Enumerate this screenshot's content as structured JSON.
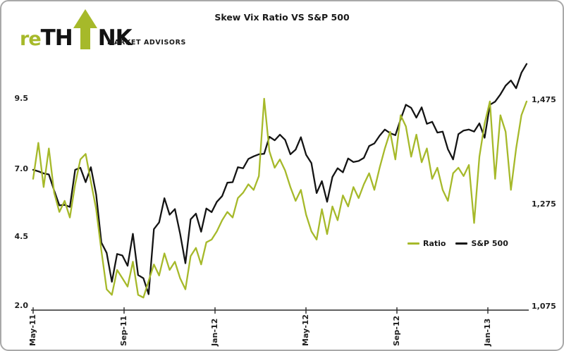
{
  "logo": {
    "prefix": "re",
    "mid": "TH",
    "suffix": "NK",
    "tagline": "MARKET ADVISORS",
    "green": "#a6b92a",
    "black": "#121212",
    "arrow_icon": "up-arrow"
  },
  "chart_data": {
    "type": "line",
    "title": "Skew Vix Ratio VS S&P 500",
    "legend_position": "inside-right",
    "grid": false,
    "x_axis": {
      "tick_labels": [
        "May-11",
        "Sep-11",
        "Jan-12",
        "May-12",
        "Sep-12",
        "Jan-13"
      ],
      "label_rotation_deg": 90
    },
    "left_axis": {
      "tick_labels": [
        "9.5",
        "7.0",
        "4.5",
        "2.0"
      ],
      "min": 2.0,
      "max": 9.5,
      "series": "Ratio"
    },
    "right_axis": {
      "tick_labels": [
        "1,475",
        "1,275",
        "1,075"
      ],
      "min": 1075,
      "max": 1475,
      "series": "S&P 500"
    },
    "legend": [
      {
        "label": "Ratio",
        "color": "#a6b92a"
      },
      {
        "label": "S&P 500",
        "color": "#141414"
      }
    ],
    "series": [
      {
        "name": "Ratio",
        "axis": "left",
        "color": "#a6b92a",
        "values": [
          6.6,
          7.9,
          6.3,
          7.7,
          6.1,
          5.4,
          5.8,
          5.2,
          6.4,
          7.3,
          7.5,
          6.5,
          5.5,
          4.0,
          2.6,
          2.4,
          3.3,
          3.0,
          2.7,
          3.6,
          2.4,
          2.3,
          2.9,
          3.5,
          3.1,
          3.9,
          3.3,
          3.6,
          3.0,
          2.6,
          3.8,
          4.1,
          3.5,
          4.3,
          4.4,
          4.7,
          5.1,
          5.4,
          5.2,
          5.9,
          6.1,
          6.4,
          6.2,
          6.7,
          9.5,
          7.6,
          7.0,
          7.3,
          6.9,
          6.3,
          5.8,
          6.2,
          5.3,
          4.7,
          4.4,
          5.5,
          4.6,
          5.6,
          5.1,
          6.0,
          5.6,
          6.3,
          5.9,
          6.4,
          6.8,
          6.2,
          7.0,
          7.7,
          8.3,
          7.3,
          8.9,
          8.5,
          7.4,
          8.2,
          7.2,
          7.7,
          6.6,
          7.0,
          6.2,
          5.8,
          6.8,
          7.0,
          6.7,
          7.1,
          5.0,
          7.4,
          8.6,
          9.4,
          6.6,
          8.9,
          8.3,
          6.2,
          7.7,
          8.9,
          9.4
        ]
      },
      {
        "name": "S&P 500",
        "axis": "right",
        "color": "#141414",
        "values": [
          1340,
          1337,
          1333,
          1331,
          1300,
          1271,
          1272,
          1268,
          1340,
          1344,
          1316,
          1345,
          1292,
          1199,
          1179,
          1123,
          1177,
          1174,
          1154,
          1216,
          1136,
          1130,
          1099,
          1225,
          1238,
          1285,
          1253,
          1264,
          1216,
          1159,
          1244,
          1255,
          1220,
          1265,
          1258,
          1278,
          1289,
          1315,
          1316,
          1345,
          1343,
          1361,
          1366,
          1370,
          1371,
          1404,
          1397,
          1408,
          1398,
          1370,
          1379,
          1403,
          1369,
          1353,
          1295,
          1318,
          1278,
          1326,
          1343,
          1335,
          1362,
          1355,
          1357,
          1363,
          1386,
          1391,
          1406,
          1418,
          1411,
          1407,
          1438,
          1466,
          1460,
          1441,
          1461,
          1429,
          1433,
          1412,
          1414,
          1380,
          1360,
          1409,
          1416,
          1418,
          1414,
          1430,
          1402,
          1466,
          1472,
          1486,
          1503,
          1513,
          1498,
          1528,
          1545
        ]
      }
    ]
  },
  "colors": {
    "background": "#ffffff",
    "border": "#a9a9a9",
    "axis": "#2b2b2b",
    "text": "#222222"
  }
}
